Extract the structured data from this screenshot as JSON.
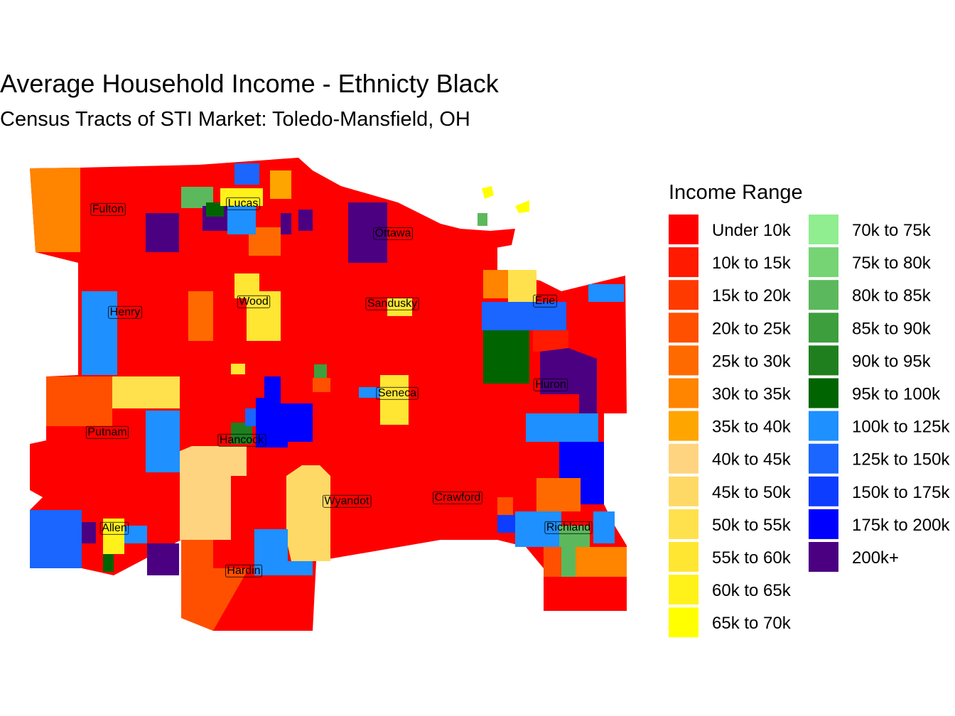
{
  "title": "Average Household Income - Ethnicty Black",
  "subtitle": "Census Tracts of STI Market: Toledo-Mansfield, OH",
  "legend": {
    "title": "Income Range",
    "items": [
      {
        "label": "Under 10k",
        "color": "#ff0000"
      },
      {
        "label": "10k to 15k",
        "color": "#ff1a00"
      },
      {
        "label": "15k to 20k",
        "color": "#ff3a00"
      },
      {
        "label": "20k to 25k",
        "color": "#ff5000"
      },
      {
        "label": "25k to 30k",
        "color": "#ff6a00"
      },
      {
        "label": "30k to 35k",
        "color": "#ff8400"
      },
      {
        "label": "35k to 40k",
        "color": "#ffa500"
      },
      {
        "label": "40k to 45k",
        "color": "#ffd480"
      },
      {
        "label": "45k to 50k",
        "color": "#ffd966"
      },
      {
        "label": "50k to 55k",
        "color": "#ffe14d"
      },
      {
        "label": "55k to 60k",
        "color": "#ffe633"
      },
      {
        "label": "60k to 65k",
        "color": "#fff21a"
      },
      {
        "label": "65k to 70k",
        "color": "#ffff00"
      },
      {
        "label": "70k to 75k",
        "color": "#90ee90"
      },
      {
        "label": "75k to 80k",
        "color": "#76d475"
      },
      {
        "label": "80k to 85k",
        "color": "#5cb85c"
      },
      {
        "label": "85k to 90k",
        "color": "#3d9e3d"
      },
      {
        "label": "90k to 95k",
        "color": "#1f7f1f"
      },
      {
        "label": "95k to 100k",
        "color": "#006400"
      },
      {
        "label": "100k to 125k",
        "color": "#1e90ff"
      },
      {
        "label": "125k to 150k",
        "color": "#1a66ff"
      },
      {
        "label": "150k to 175k",
        "color": "#0d3dff"
      },
      {
        "label": "175k to 200k",
        "color": "#0000ff"
      },
      {
        "label": "200k+",
        "color": "#4b0082"
      }
    ]
  },
  "counties": [
    "Fulton",
    "Lucas",
    "Ottawa",
    "Wood",
    "Henry",
    "Sandusky",
    "Erie",
    "Huron",
    "Seneca",
    "Putnam",
    "Hancock",
    "Wyandot",
    "Crawford",
    "Allen",
    "Richland",
    "Hardin"
  ]
}
